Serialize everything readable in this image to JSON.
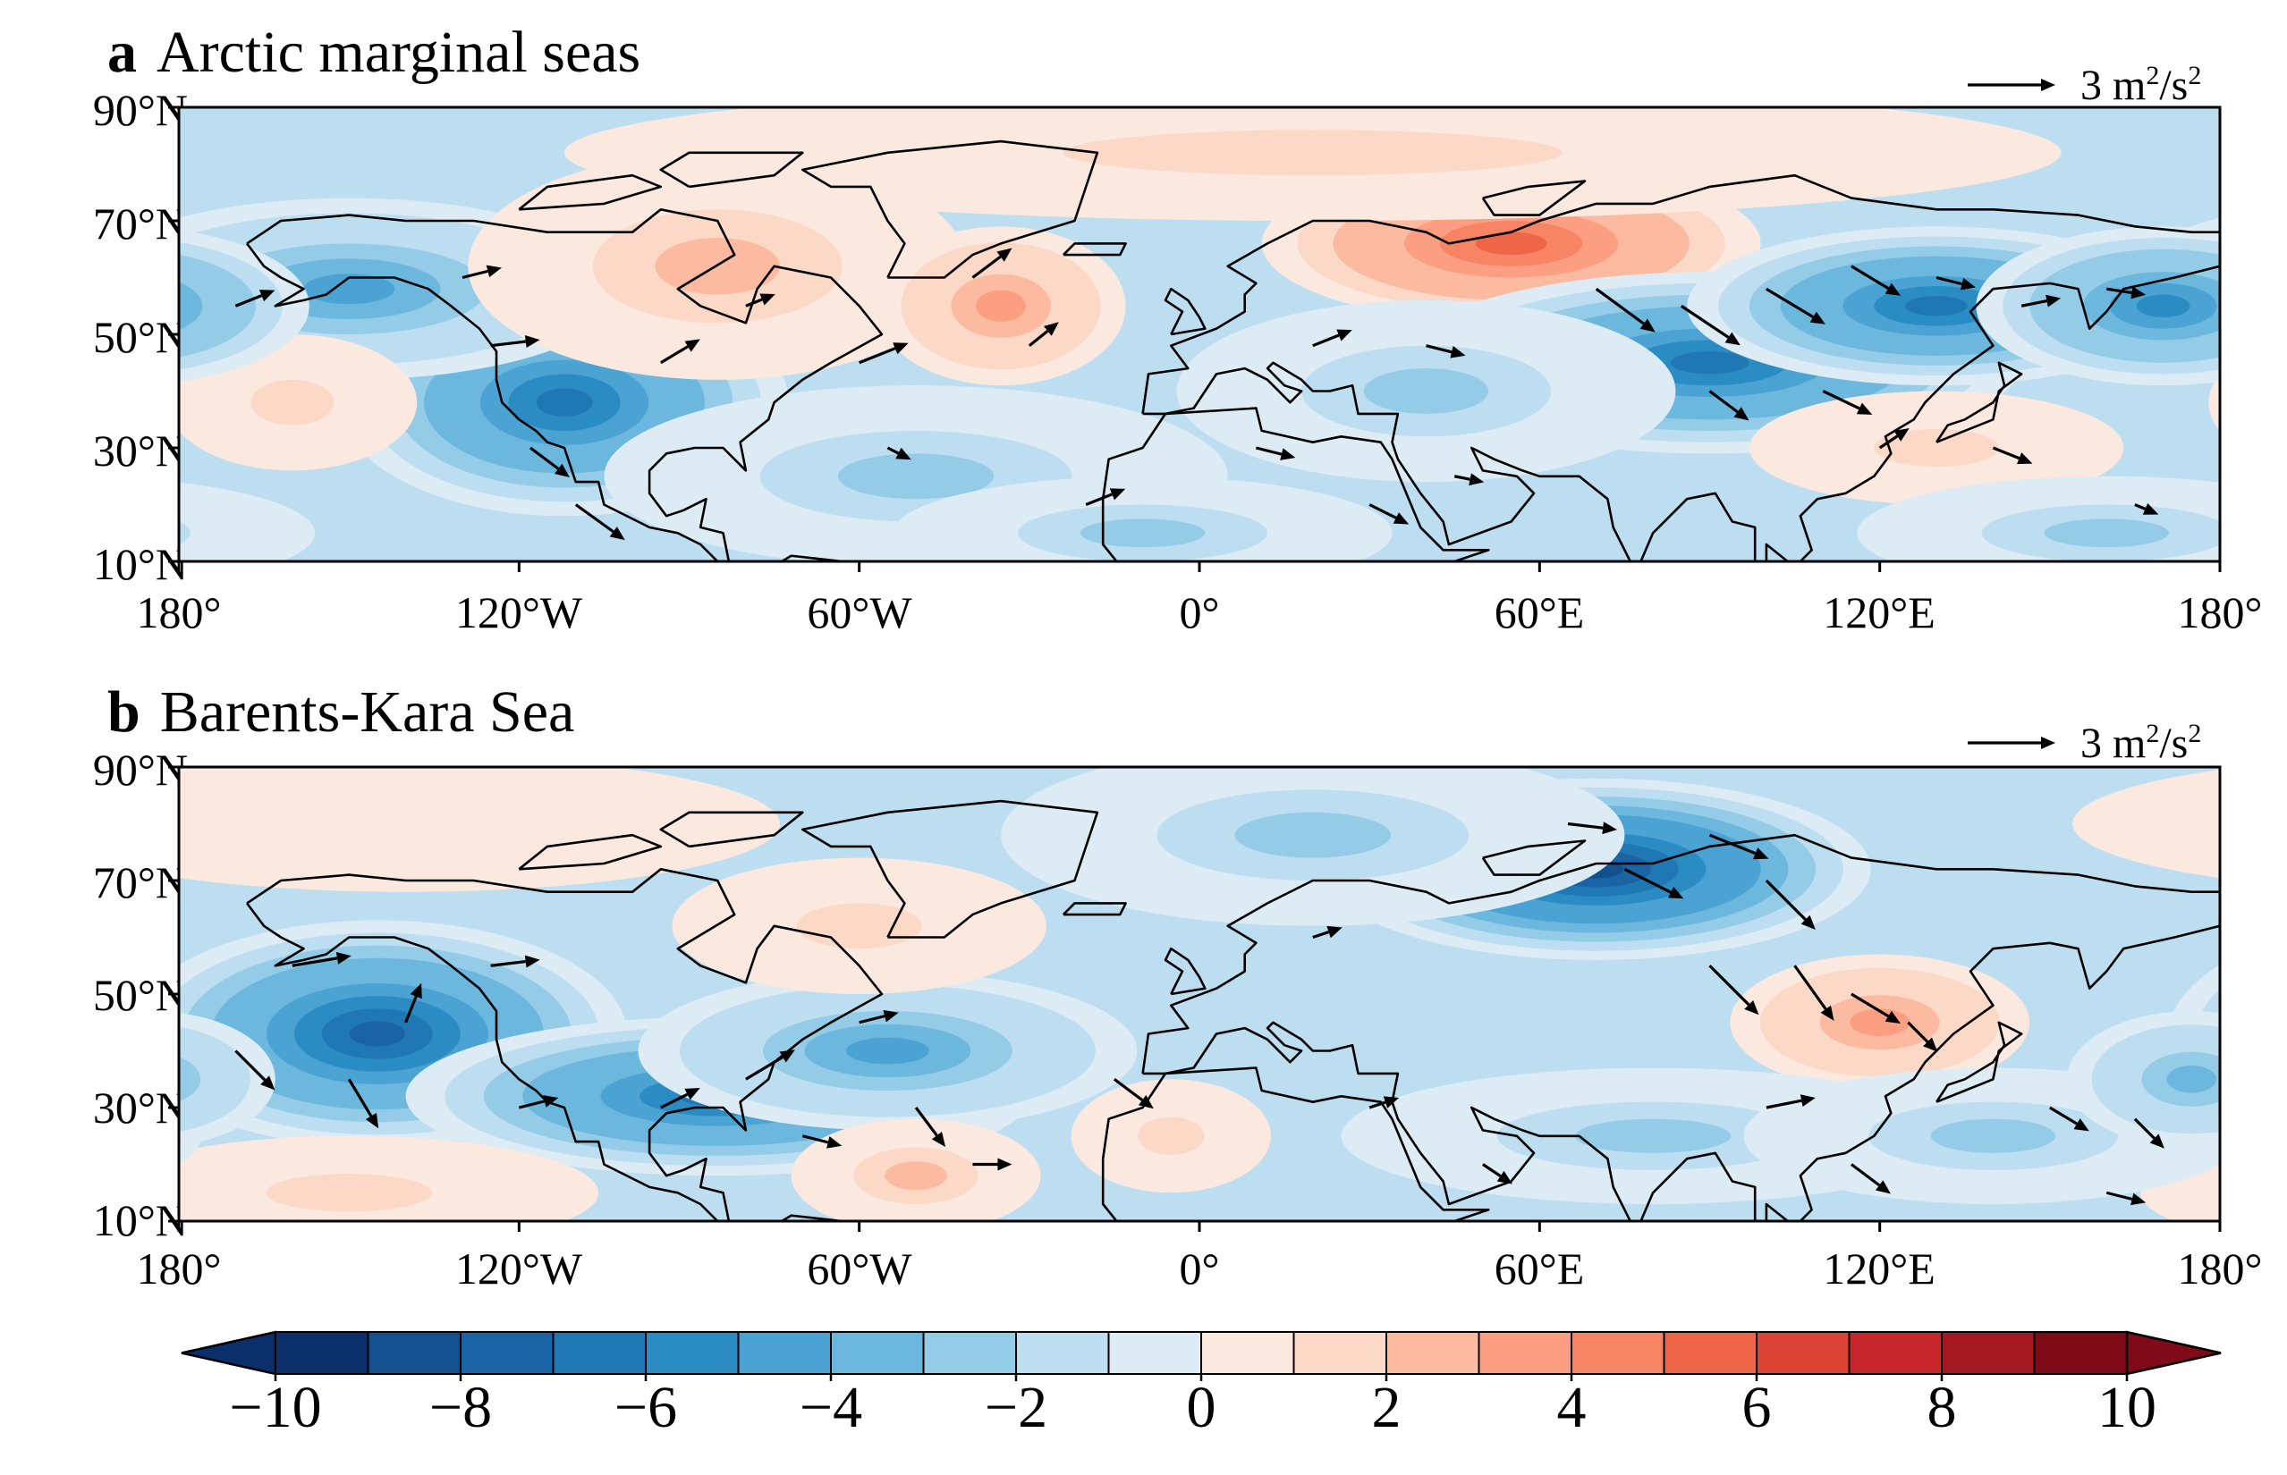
{
  "figure": {
    "domain": "Map",
    "panels": [
      {
        "id": "a",
        "letter": "a",
        "title": "Arctic marginal seas",
        "reference_vector_label": "3 m",
        "reference_vector_exp": "2",
        "reference_vector_unit_tail": "/s",
        "reference_vector_unit_exp": "2",
        "lat_labels": [
          "90°N",
          "70°N",
          "50°N",
          "30°N",
          "10°N"
        ],
        "lat_values": [
          90,
          70,
          50,
          30,
          10
        ],
        "lon_labels": [
          "180°",
          "120°W",
          "60°W",
          "0°",
          "60°E",
          "120°E",
          "180°"
        ],
        "lon_values": [
          -180,
          -120,
          -60,
          0,
          60,
          120,
          180
        ],
        "anomaly_centers": [
          {
            "lon": -112,
            "lat": 38,
            "value": -7,
            "spread_lon": 18,
            "spread_lat": 10
          },
          {
            "lon": -150,
            "lat": 58,
            "value": -5,
            "spread_lon": 22,
            "spread_lat": 8
          },
          {
            "lon": -160,
            "lat": 38,
            "value": 2,
            "spread_lon": 10,
            "spread_lat": 6
          },
          {
            "lon": -85,
            "lat": 62,
            "value": 3,
            "spread_lon": 20,
            "spread_lat": 10
          },
          {
            "lon": -35,
            "lat": 55,
            "value": 4,
            "spread_lon": 10,
            "spread_lat": 7
          },
          {
            "lon": -50,
            "lat": 25,
            "value": -3,
            "spread_lon": 25,
            "spread_lat": 8
          },
          {
            "lon": 55,
            "lat": 66,
            "value": 6,
            "spread_lon": 20,
            "spread_lat": 7
          },
          {
            "lon": 20,
            "lat": 82,
            "value": 2,
            "spread_lon": 60,
            "spread_lat": 6
          },
          {
            "lon": 90,
            "lat": 45,
            "value": -7,
            "spread_lon": 25,
            "spread_lat": 8
          },
          {
            "lon": 130,
            "lat": 55,
            "value": -7,
            "spread_lon": 20,
            "spread_lat": 7
          },
          {
            "lon": 170,
            "lat": 55,
            "value": -6,
            "spread_lon": 15,
            "spread_lat": 7
          },
          {
            "lon": 40,
            "lat": 40,
            "value": -3,
            "spread_lon": 20,
            "spread_lat": 8
          },
          {
            "lon": 130,
            "lat": 30,
            "value": 2,
            "spread_lon": 15,
            "spread_lat": 5
          },
          {
            "lon": -10,
            "lat": 15,
            "value": -3,
            "spread_lon": 20,
            "spread_lat": 5
          },
          {
            "lon": 160,
            "lat": 15,
            "value": -3,
            "spread_lon": 20,
            "spread_lat": 5
          }
        ],
        "flux_vectors": [
          {
            "lon": -170,
            "lat": 55,
            "u": 2.0,
            "v": 0.8
          },
          {
            "lon": -130,
            "lat": 60,
            "u": 2.0,
            "v": 0.5
          },
          {
            "lon": -125,
            "lat": 48,
            "u": 2.5,
            "v": 0.3
          },
          {
            "lon": -118,
            "lat": 30,
            "u": 2.0,
            "v": -1.5
          },
          {
            "lon": -110,
            "lat": 20,
            "u": 2.5,
            "v": -1.8
          },
          {
            "lon": -95,
            "lat": 45,
            "u": 2.0,
            "v": 1.2
          },
          {
            "lon": -80,
            "lat": 55,
            "u": 1.5,
            "v": 0.6
          },
          {
            "lon": -60,
            "lat": 45,
            "u": 2.5,
            "v": 1.0
          },
          {
            "lon": -40,
            "lat": 60,
            "u": 2.0,
            "v": 1.5
          },
          {
            "lon": -30,
            "lat": 48,
            "u": 1.5,
            "v": 1.2
          },
          {
            "lon": -55,
            "lat": 30,
            "u": 1.2,
            "v": -0.6
          },
          {
            "lon": -20,
            "lat": 20,
            "u": 2.0,
            "v": 0.8
          },
          {
            "lon": 10,
            "lat": 30,
            "u": 2.0,
            "v": -0.5
          },
          {
            "lon": 30,
            "lat": 20,
            "u": 2.0,
            "v": -1.0
          },
          {
            "lon": 45,
            "lat": 25,
            "u": 1.5,
            "v": -0.3
          },
          {
            "lon": 70,
            "lat": 58,
            "u": 3.0,
            "v": -2.2
          },
          {
            "lon": 85,
            "lat": 55,
            "u": 3.0,
            "v": -2.0
          },
          {
            "lon": 100,
            "lat": 58,
            "u": 3.0,
            "v": -1.8
          },
          {
            "lon": 115,
            "lat": 62,
            "u": 2.5,
            "v": -1.5
          },
          {
            "lon": 90,
            "lat": 40,
            "u": 2.0,
            "v": -1.5
          },
          {
            "lon": 110,
            "lat": 40,
            "u": 2.5,
            "v": -1.2
          },
          {
            "lon": 130,
            "lat": 60,
            "u": 2.0,
            "v": -0.5
          },
          {
            "lon": 145,
            "lat": 55,
            "u": 2.0,
            "v": 0.4
          },
          {
            "lon": 160,
            "lat": 58,
            "u": 2.0,
            "v": -0.3
          },
          {
            "lon": 120,
            "lat": 30,
            "u": 1.5,
            "v": 1.0
          },
          {
            "lon": 140,
            "lat": 30,
            "u": 2.0,
            "v": -0.8
          },
          {
            "lon": 165,
            "lat": 20,
            "u": 1.2,
            "v": -0.5
          },
          {
            "lon": 20,
            "lat": 48,
            "u": 2.0,
            "v": 0.8
          },
          {
            "lon": 40,
            "lat": 48,
            "u": 2.0,
            "v": -0.5
          }
        ]
      },
      {
        "id": "b",
        "letter": "b",
        "title": "Barents-Kara Sea",
        "reference_vector_label": "3 m",
        "reference_vector_exp": "2",
        "reference_vector_unit_tail": "/s",
        "reference_vector_unit_exp": "2",
        "lat_labels": [
          "90°N",
          "70°N",
          "50°N",
          "30°N",
          "10°N"
        ],
        "lat_values": [
          90,
          70,
          50,
          30,
          10
        ],
        "lon_labels": [
          "180°",
          "120°W",
          "60°W",
          "0°",
          "60°E",
          "120°E",
          "180°"
        ],
        "lon_values": [
          -180,
          -120,
          -60,
          0,
          60,
          120,
          180
        ],
        "anomaly_centers": [
          {
            "lon": -145,
            "lat": 43,
            "value": -8,
            "spread_lon": 20,
            "spread_lat": 10
          },
          {
            "lon": -85,
            "lat": 32,
            "value": -7,
            "spread_lon": 25,
            "spread_lat": 7
          },
          {
            "lon": -55,
            "lat": 40,
            "value": -5,
            "spread_lon": 20,
            "spread_lat": 7
          },
          {
            "lon": -140,
            "lat": 80,
            "value": 1,
            "spread_lon": 30,
            "spread_lat": 6
          },
          {
            "lon": -60,
            "lat": 62,
            "value": 2,
            "spread_lon": 15,
            "spread_lat": 6
          },
          {
            "lon": -50,
            "lat": 18,
            "value": 3,
            "spread_lon": 10,
            "spread_lat": 5
          },
          {
            "lon": -150,
            "lat": 15,
            "value": 2,
            "spread_lon": 20,
            "spread_lat": 5
          },
          {
            "lon": 70,
            "lat": 72,
            "value": -9,
            "spread_lon": 22,
            "spread_lat": 8
          },
          {
            "lon": 20,
            "lat": 78,
            "value": -3,
            "spread_lon": 25,
            "spread_lat": 8
          },
          {
            "lon": 120,
            "lat": 45,
            "value": 4,
            "spread_lon": 12,
            "spread_lat": 6
          },
          {
            "lon": 80,
            "lat": 25,
            "value": -3,
            "spread_lon": 25,
            "spread_lat": 6
          },
          {
            "lon": 140,
            "lat": 25,
            "value": -3,
            "spread_lon": 20,
            "spread_lat": 6
          },
          {
            "lon": 175,
            "lat": 35,
            "value": -4,
            "spread_lon": 10,
            "spread_lat": 6
          },
          {
            "lon": -5,
            "lat": 25,
            "value": 2,
            "spread_lon": 8,
            "spread_lat": 5
          }
        ],
        "flux_vectors": [
          {
            "lon": -160,
            "lat": 55,
            "u": 3.0,
            "v": 0.5
          },
          {
            "lon": -170,
            "lat": 40,
            "u": 2.0,
            "v": -2.0
          },
          {
            "lon": -150,
            "lat": 35,
            "u": 1.5,
            "v": -2.5
          },
          {
            "lon": -140,
            "lat": 45,
            "u": 0.8,
            "v": 2.0
          },
          {
            "lon": -125,
            "lat": 55,
            "u": 2.5,
            "v": 0.3
          },
          {
            "lon": -120,
            "lat": 30,
            "u": 2.0,
            "v": 0.5
          },
          {
            "lon": -95,
            "lat": 30,
            "u": 2.0,
            "v": 1.0
          },
          {
            "lon": -80,
            "lat": 35,
            "u": 2.5,
            "v": 1.5
          },
          {
            "lon": -70,
            "lat": 25,
            "u": 2.0,
            "v": -0.5
          },
          {
            "lon": -50,
            "lat": 30,
            "u": 1.5,
            "v": -2.0
          },
          {
            "lon": -40,
            "lat": 20,
            "u": 2.0,
            "v": 0.0
          },
          {
            "lon": -60,
            "lat": 45,
            "u": 2.0,
            "v": 0.5
          },
          {
            "lon": -15,
            "lat": 35,
            "u": 2.0,
            "v": -1.5
          },
          {
            "lon": 20,
            "lat": 60,
            "u": 1.5,
            "v": 0.5
          },
          {
            "lon": 65,
            "lat": 80,
            "u": 2.5,
            "v": -0.3
          },
          {
            "lon": 75,
            "lat": 72,
            "u": 3.0,
            "v": -1.5
          },
          {
            "lon": 90,
            "lat": 78,
            "u": 3.0,
            "v": -1.2
          },
          {
            "lon": 100,
            "lat": 70,
            "u": 2.5,
            "v": -2.5
          },
          {
            "lon": 90,
            "lat": 55,
            "u": 2.5,
            "v": -2.5
          },
          {
            "lon": 105,
            "lat": 55,
            "u": 2.0,
            "v": -2.8
          },
          {
            "lon": 115,
            "lat": 50,
            "u": 2.5,
            "v": -1.5
          },
          {
            "lon": 125,
            "lat": 45,
            "u": 1.5,
            "v": -1.5
          },
          {
            "lon": 100,
            "lat": 30,
            "u": 2.5,
            "v": 0.5
          },
          {
            "lon": 115,
            "lat": 20,
            "u": 2.0,
            "v": -1.5
          },
          {
            "lon": 150,
            "lat": 30,
            "u": 2.0,
            "v": -1.2
          },
          {
            "lon": 165,
            "lat": 28,
            "u": 1.5,
            "v": -1.5
          },
          {
            "lon": 160,
            "lat": 15,
            "u": 2.0,
            "v": -0.5
          },
          {
            "lon": 30,
            "lat": 30,
            "u": 1.5,
            "v": 0.5
          },
          {
            "lon": 50,
            "lat": 20,
            "u": 1.5,
            "v": -1.0
          }
        ]
      }
    ],
    "colorbar": {
      "tick_labels": [
        "−10",
        "−8",
        "−6",
        "−4",
        "−2",
        "0",
        "2",
        "4",
        "6",
        "8",
        "10"
      ],
      "tick_values": [
        -10,
        -8,
        -6,
        -4,
        -2,
        0,
        2,
        4,
        6,
        8,
        10
      ],
      "levels": [
        -10,
        -9,
        -8,
        -7,
        -6,
        -5,
        -4,
        -3,
        -2,
        -1,
        0,
        1,
        2,
        3,
        4,
        5,
        6,
        7,
        8,
        9,
        10
      ],
      "colors": [
        "#0b2f6b",
        "#12508f",
        "#1a64a6",
        "#1f78b4",
        "#2b8cc4",
        "#4aa3d2",
        "#6cb7dd",
        "#94cbe6",
        "#bcdef0",
        "#ddebf5",
        "#fbe9e0",
        "#fcd8c6",
        "#fcbba1",
        "#fb9e82",
        "#f78464",
        "#ef6548",
        "#dc4335",
        "#c6262c",
        "#a51a22",
        "#7f0b18"
      ],
      "extend": "both"
    },
    "coastline_color": "#000000"
  }
}
